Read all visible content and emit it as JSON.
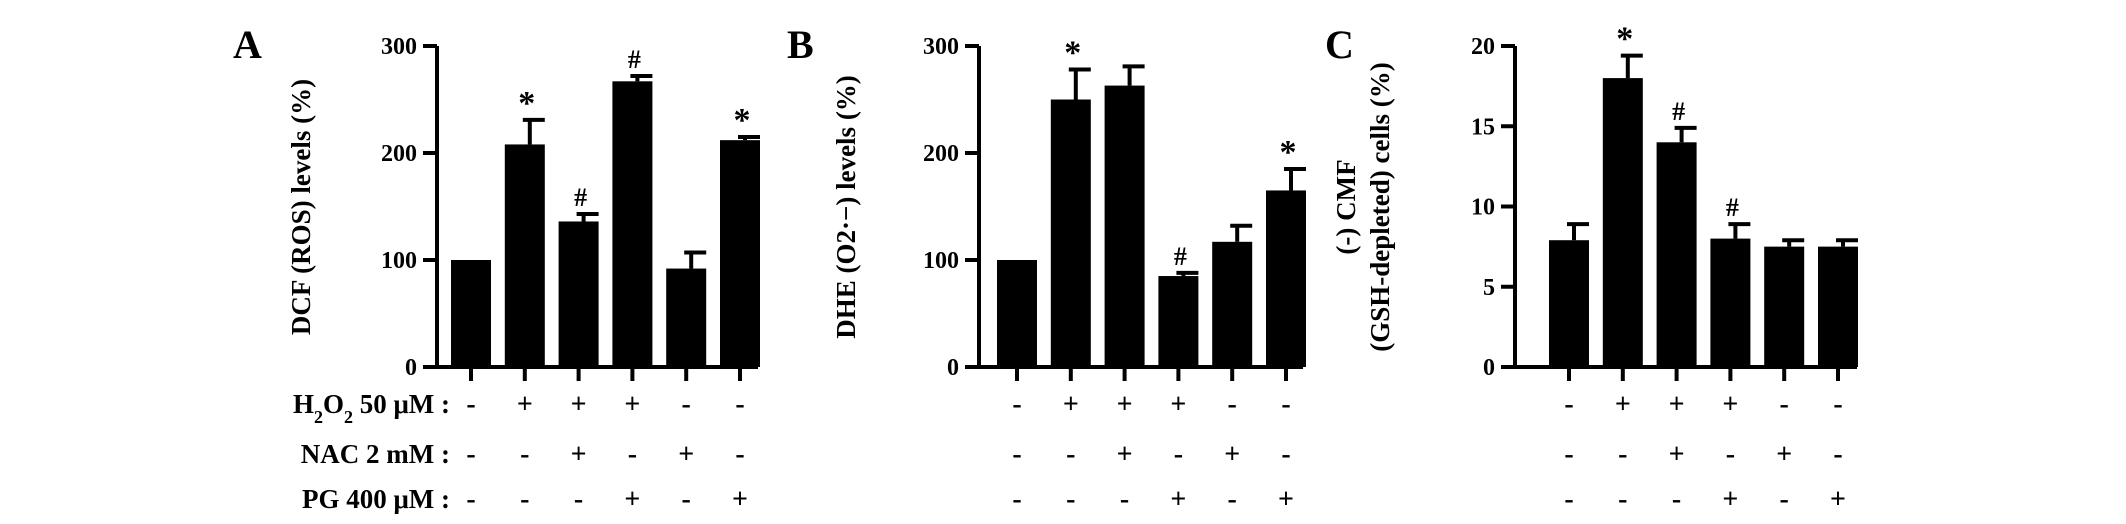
{
  "chart_data": [
    {
      "panel": "A",
      "type": "bar",
      "ylabel": "DCF (ROS) levels (%)",
      "ylim": [
        0,
        300
      ],
      "yticks": [
        0,
        100,
        200,
        300
      ],
      "values": [
        100,
        208,
        136,
        267,
        92,
        212
      ],
      "errors": [
        0,
        23,
        7,
        5,
        15,
        3
      ],
      "annotations": [
        "",
        "*",
        "#",
        "#",
        "",
        "*"
      ]
    },
    {
      "panel": "B",
      "type": "bar",
      "ylabel": "DHE (O2·−) levels (%)",
      "ylim": [
        0,
        300
      ],
      "yticks": [
        0,
        100,
        200,
        300
      ],
      "values": [
        100,
        250,
        263,
        85,
        117,
        165
      ],
      "errors": [
        0,
        28,
        18,
        3,
        15,
        20
      ],
      "annotations": [
        "",
        "*",
        "",
        "#",
        "",
        "*"
      ]
    },
    {
      "panel": "C",
      "type": "bar",
      "ylabel_line1": "(-) CMF",
      "ylabel_line2": "(GSH-depleted) cells (%)",
      "ylim": [
        0,
        20
      ],
      "yticks": [
        0,
        5,
        10,
        15,
        20
      ],
      "values": [
        7.9,
        18,
        14,
        8,
        7.5,
        7.5
      ],
      "errors": [
        1.0,
        1.4,
        0.9,
        0.9,
        0.4,
        0.4
      ],
      "annotations": [
        "",
        "*",
        "#",
        "#",
        "",
        ""
      ]
    }
  ],
  "treatments": {
    "h2o2": {
      "label_prefix": "H",
      "label_sub1": "2",
      "label_mid": "O",
      "label_sub2": "2",
      "label_suffix": " 50 μM :",
      "signs": [
        "-",
        "+",
        "+",
        "+",
        "-",
        "-"
      ]
    },
    "nac": {
      "label": "NAC 2 mM :",
      "signs": [
        "-",
        "-",
        "+",
        "-",
        "+",
        "-"
      ]
    },
    "pg": {
      "label": "PG 400 μM :",
      "signs": [
        "-",
        "-",
        "-",
        "+",
        "-",
        "+"
      ]
    }
  }
}
